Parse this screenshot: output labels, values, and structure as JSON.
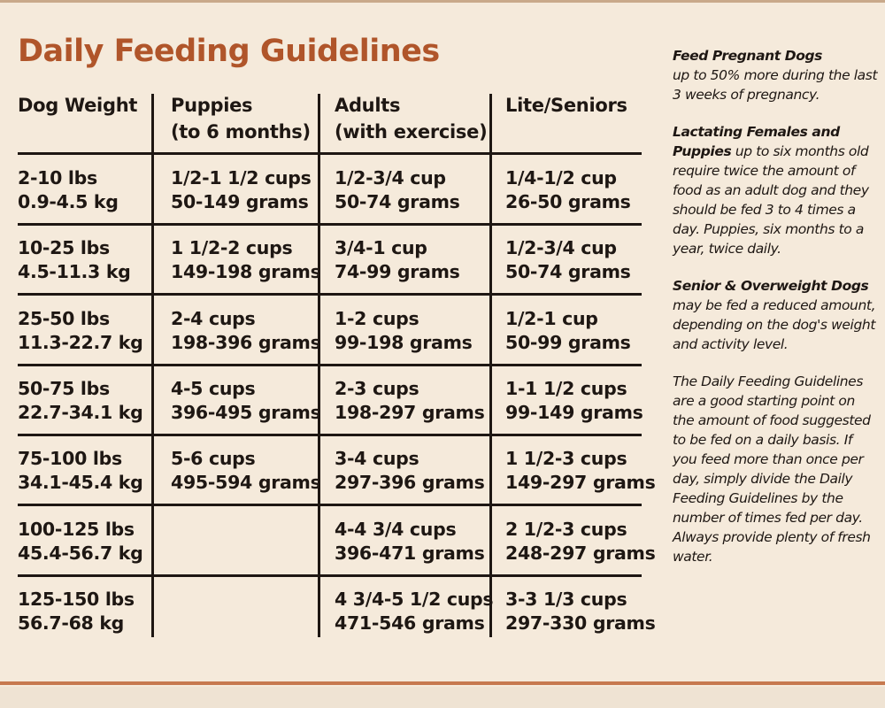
{
  "title": "Daily Feeding Guidelines",
  "colors": {
    "title": "#b0552a",
    "background": "#f5eadb",
    "rule": "#1e1713",
    "accent_band": "#c7794f"
  },
  "table": {
    "headers": [
      {
        "line1": "Dog Weight",
        "line2": ""
      },
      {
        "line1": "Puppies",
        "line2": "(to 6 months)"
      },
      {
        "line1": "Adults",
        "line2": "(with exercise)"
      },
      {
        "line1": "Lite/Seniors",
        "line2": ""
      }
    ],
    "rows": [
      {
        "weight": [
          "2-10 lbs",
          "0.9-4.5 kg"
        ],
        "puppies": [
          "1/2-1 1/2 cups",
          "50-149 grams"
        ],
        "adults": [
          "1/2-3/4 cup",
          "50-74 grams"
        ],
        "seniors": [
          "1/4-1/2 cup",
          "26-50 grams"
        ]
      },
      {
        "weight": [
          "10-25 lbs",
          "4.5-11.3 kg"
        ],
        "puppies": [
          "1 1/2-2 cups",
          "149-198 grams"
        ],
        "adults": [
          "3/4-1 cup",
          "74-99 grams"
        ],
        "seniors": [
          "1/2-3/4 cup",
          "50-74 grams"
        ]
      },
      {
        "weight": [
          "25-50 lbs",
          "11.3-22.7 kg"
        ],
        "puppies": [
          "2-4 cups",
          "198-396 grams"
        ],
        "adults": [
          "1-2 cups",
          "99-198 grams"
        ],
        "seniors": [
          "1/2-1 cup",
          "50-99 grams"
        ]
      },
      {
        "weight": [
          "50-75 lbs",
          "22.7-34.1 kg"
        ],
        "puppies": [
          "4-5 cups",
          "396-495 grams"
        ],
        "adults": [
          "2-3 cups",
          "198-297 grams"
        ],
        "seniors": [
          "1-1 1/2 cups",
          "99-149 grams"
        ]
      },
      {
        "weight": [
          "75-100 lbs",
          "34.1-45.4 kg"
        ],
        "puppies": [
          "5-6 cups",
          "495-594 grams"
        ],
        "adults": [
          "3-4 cups",
          "297-396 grams"
        ],
        "seniors": [
          "1 1/2-3 cups",
          "149-297 grams"
        ]
      },
      {
        "weight": [
          "100-125 lbs",
          "45.4-56.7 kg"
        ],
        "puppies": [
          "",
          ""
        ],
        "adults": [
          "4-4 3/4 cups",
          "396-471 grams"
        ],
        "seniors": [
          "2 1/2-3 cups",
          "248-297 grams"
        ]
      },
      {
        "weight": [
          "125-150 lbs",
          "56.7-68 kg"
        ],
        "puppies": [
          "",
          ""
        ],
        "adults": [
          "4 3/4-5 1/2 cups",
          "471-546 grams"
        ],
        "seniors": [
          "3-3 1/3 cups",
          "297-330 grams"
        ]
      }
    ]
  },
  "notes": {
    "pregnant_bold": "Feed Pregnant Dogs",
    "pregnant_text": "up to 50% more during the last 3 weeks of pregnancy.",
    "lactating_bold": "Lactating Females and Puppies",
    "lactating_text": "up to six months old require twice the amount of food as an adult dog and they should be fed 3 to 4 times a day. Puppies, six months to a year, twice daily.",
    "senior_bold": "Senior & Overweight Dogs",
    "senior_text": "may be fed a reduced amount, depending on the dog's weight and activity level.",
    "guidelines_text": "The Daily Feeding Guidelines are a good starting point on the amount of food suggested to be fed on a daily basis. If you feed more than once per day, simply divide the Daily Feeding Guidelines by the number of times fed per day. Always provide plenty of fresh water."
  }
}
